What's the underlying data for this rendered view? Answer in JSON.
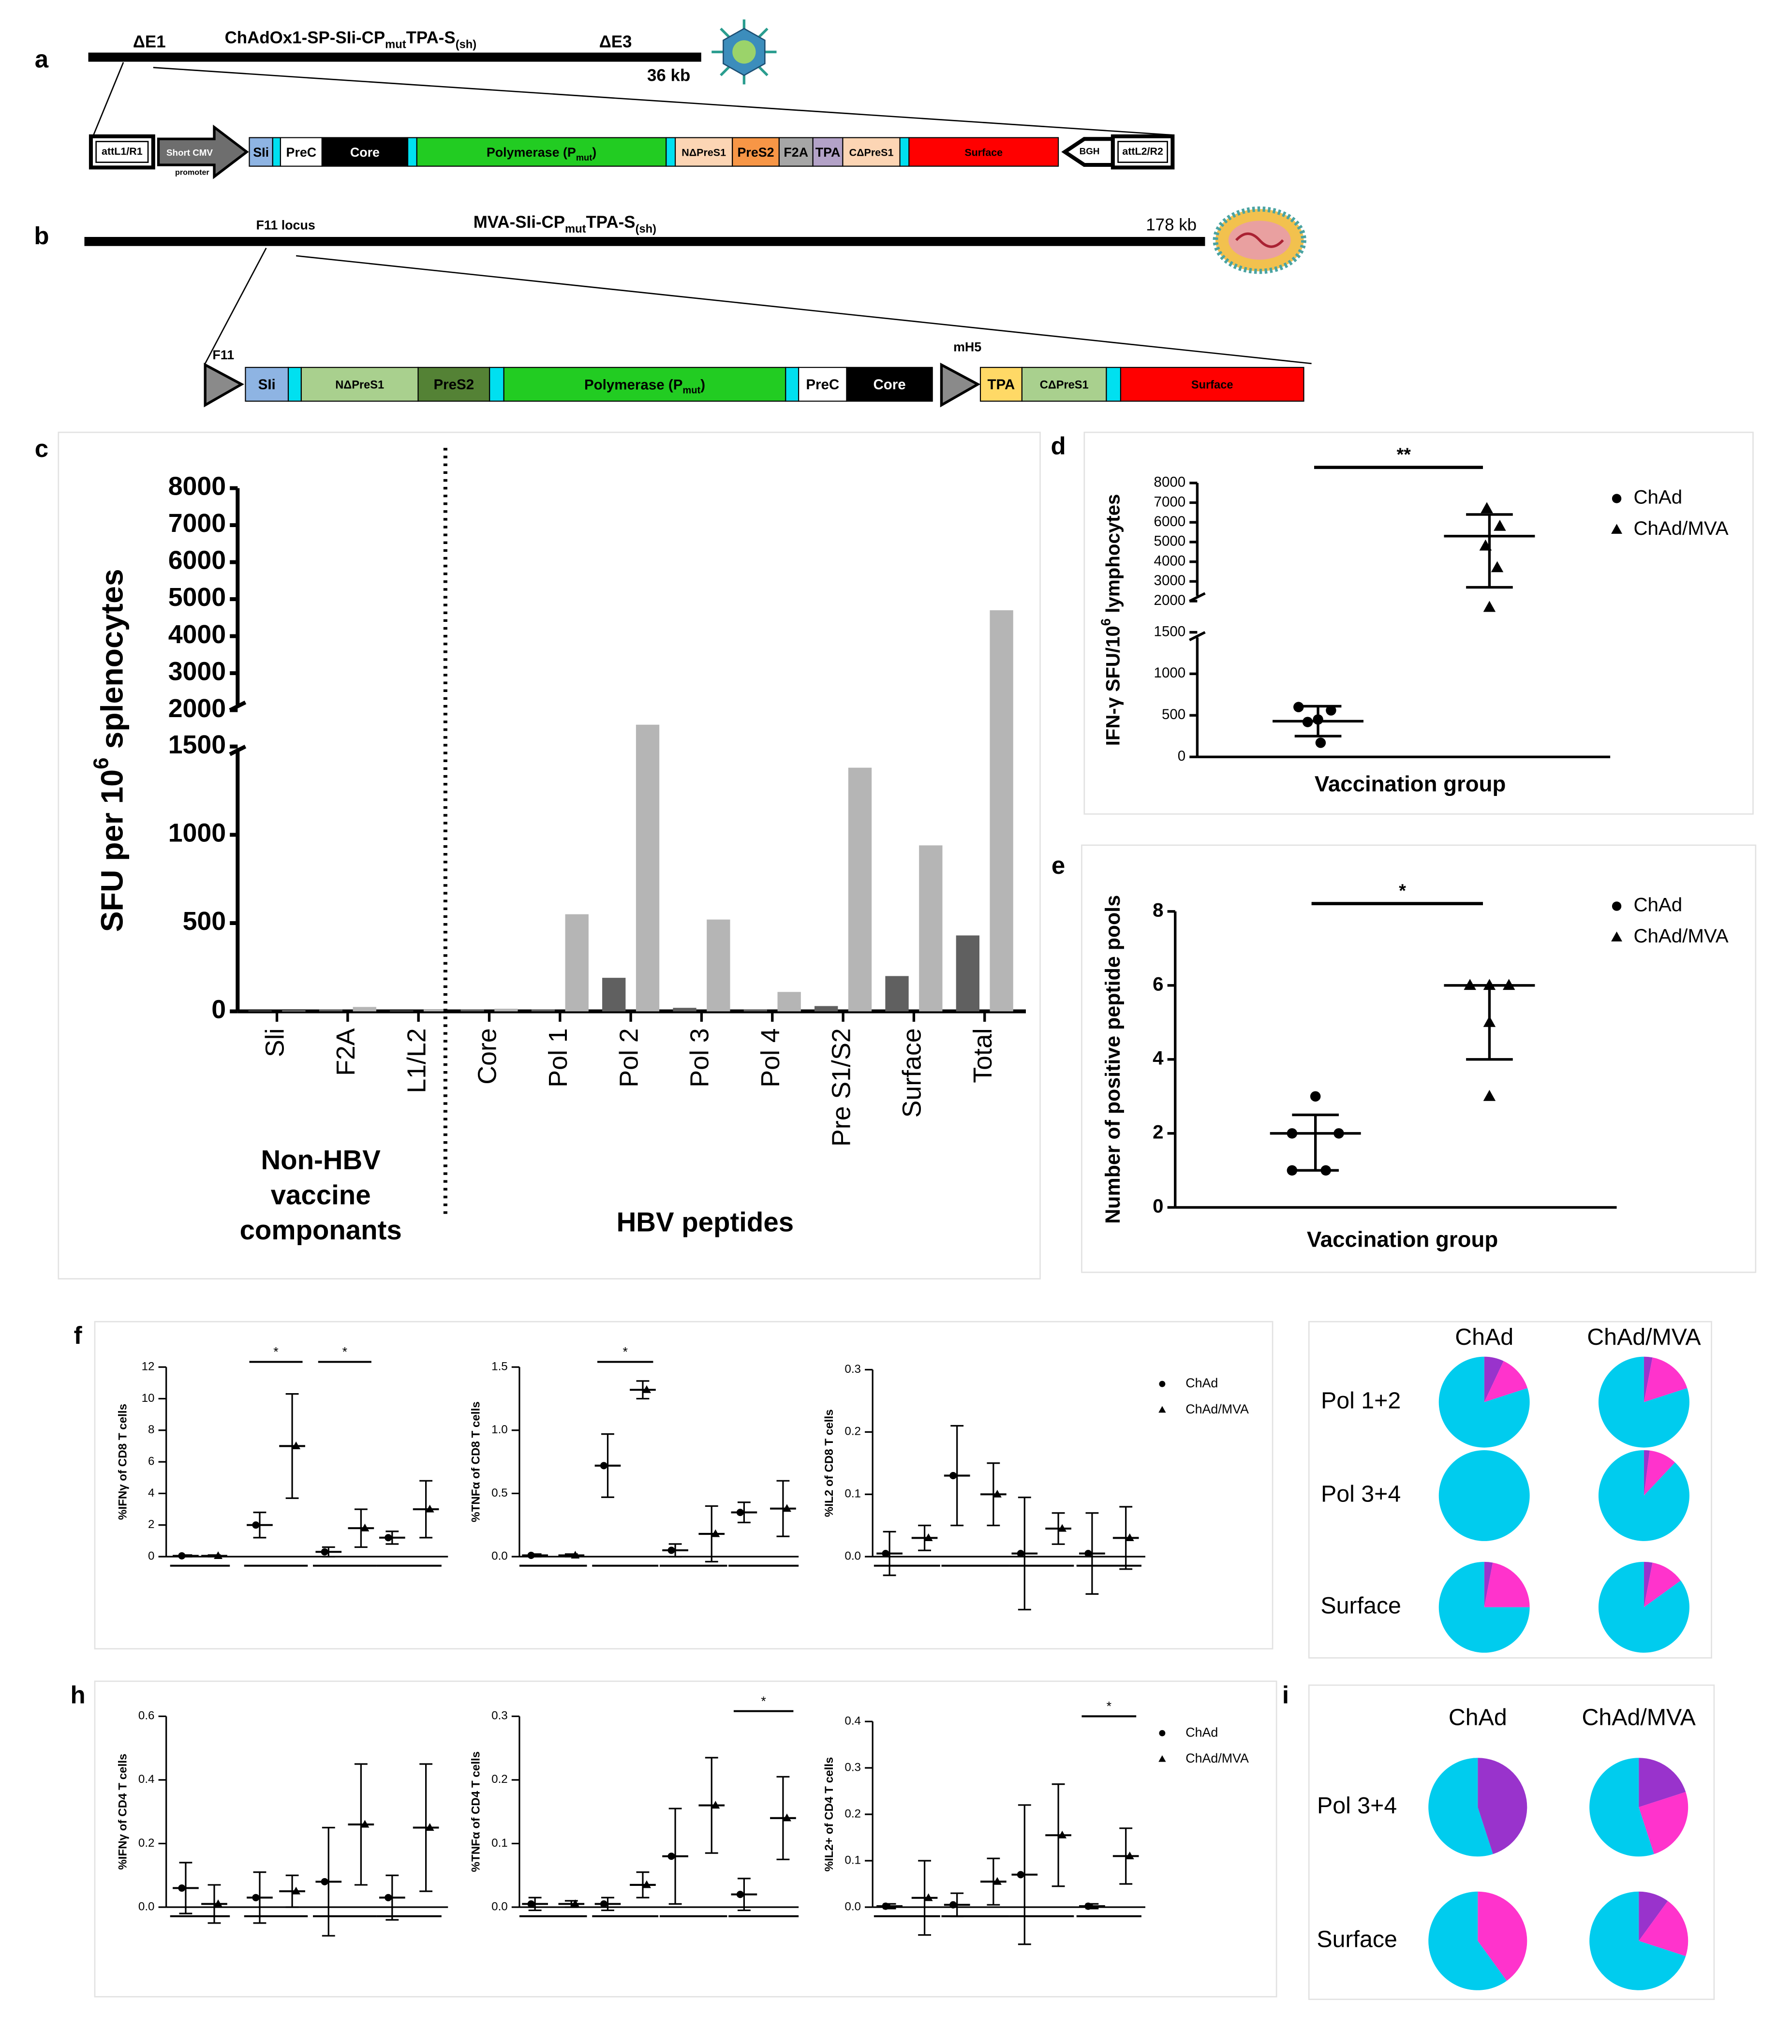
{
  "panel_labels": [
    "a",
    "b",
    "c",
    "d",
    "e",
    "f",
    "h",
    "i"
  ],
  "diagrams": [
    {
      "name_parts": [
        "ChAdOx1-SP-SIi-CP",
        "mut",
        "TPA-S",
        "(sh)"
      ],
      "left_mark": "ΔE1",
      "right_mark": "ΔE3",
      "size": "36 kb",
      "flank_left": "attL1/R1",
      "promoter": [
        "Short CMV",
        "promoter"
      ],
      "terminator": "BGH",
      "flank_right": "attL2/R2",
      "segments": [
        {
          "label": "SIi",
          "color": "#8eb4e3"
        },
        {
          "color": "#00e0f0"
        },
        {
          "label": "PreC",
          "color": "#ffffff"
        },
        {
          "label": "Core",
          "color": "#000000"
        },
        {
          "color": "#00e0f0"
        },
        {
          "label": [
            "Polymerase (P",
            "mut",
            ")"
          ],
          "color": "#22cc22"
        },
        {
          "color": "#00e0f0"
        },
        {
          "label": "NΔPreS1",
          "color": "#fcd5b4"
        },
        {
          "label": "PreS2",
          "color": "#f79646"
        },
        {
          "label": "F2A",
          "color": "#a6a6a6"
        },
        {
          "label": "TPA",
          "color": "#b3a2c7"
        },
        {
          "label": "CΔPreS1",
          "color": "#fcd5b4"
        },
        {
          "color": "#00e0f0"
        },
        {
          "label": "Surface",
          "color": "#ff0000"
        }
      ]
    },
    {
      "name_parts": [
        "MVA-SIi-CP",
        "mut",
        "TPA-S",
        "(sh)"
      ],
      "locus": "F11 locus",
      "size": "178 kb",
      "promoter1": "F11",
      "promoter2": "mH5",
      "segments1": [
        {
          "label": "SIi",
          "color": "#8eb4e3"
        },
        {
          "color": "#00e0f0"
        },
        {
          "label": "NΔPreS1",
          "color": "#a9d08e"
        },
        {
          "label": "PreS2",
          "color": "#548235"
        },
        {
          "color": "#00e0f0"
        },
        {
          "label": [
            "Polymerase (P",
            "mut",
            ")"
          ],
          "color": "#22cc22"
        },
        {
          "color": "#00e0f0"
        },
        {
          "label": "PreC",
          "color": "#ffffff"
        },
        {
          "label": "Core",
          "color": "#000000"
        }
      ],
      "segments2": [
        {
          "label": "TPA",
          "color": "#ffd966"
        },
        {
          "label": "CΔPreS1",
          "color": "#a9d08e"
        },
        {
          "color": "#00e0f0"
        },
        {
          "label": "Surface",
          "color": "#ff0000"
        }
      ]
    }
  ],
  "chart_data": [
    {
      "type": "bar",
      "ylabel_parts": [
        "SFU per 10",
        "6",
        " splenocytes"
      ],
      "categories": [
        "Sli",
        "F2A",
        "L1/L2",
        "Core",
        "Pol 1",
        "Pol 2",
        "Pol 3",
        "Pol 4",
        "Pre S1/S2",
        "Surface",
        "Total"
      ],
      "series": [
        {
          "color": "#606060",
          "values": [
            5,
            10,
            5,
            10,
            10,
            190,
            20,
            10,
            30,
            200,
            430
          ]
        },
        {
          "color": "#b5b5b5",
          "values": [
            5,
            25,
            10,
            15,
            550,
            1800,
            520,
            110,
            1380,
            940,
            4700
          ]
        }
      ],
      "ylim": [
        0,
        8000
      ],
      "ybreak": [
        1500,
        2000
      ],
      "yticks": [
        0,
        500,
        1000,
        1500,
        2000,
        3000,
        4000,
        5000,
        6000,
        7000,
        8000
      ],
      "group_labels": [
        [
          "Non-HBV",
          "vaccine",
          "componants"
        ],
        [
          "HBV peptides"
        ]
      ]
    },
    {
      "type": "scatter",
      "ylabel_parts": [
        "IFN-γ SFU/10",
        "6",
        " lymphocytes"
      ],
      "xlabel": "Vaccination group",
      "ylim": [
        0,
        8000
      ],
      "ybreak": [
        1500,
        2000
      ],
      "yticks": [
        0,
        500,
        1000,
        1500,
        2000,
        3000,
        4000,
        5000,
        6000,
        7000,
        8000
      ],
      "significance": "**",
      "series": [
        {
          "name": "ChAd",
          "marker": "circle",
          "values": [
            600,
            560,
            450,
            420,
            170
          ],
          "center": 430,
          "lower": 250,
          "upper": 610
        },
        {
          "name": "ChAd/MVA",
          "marker": "triangle",
          "values": [
            6700,
            5800,
            4800,
            3700,
            1900
          ],
          "center": 5300,
          "lower": 2700,
          "upper": 6400
        }
      ]
    },
    {
      "type": "scatter",
      "ylabel": "Number of positive peptide pools",
      "xlabel": "Vaccination group",
      "ylim": [
        0,
        8
      ],
      "yticks": [
        0,
        2,
        4,
        6,
        8
      ],
      "significance": "*",
      "series": [
        {
          "name": "ChAd",
          "marker": "circle",
          "values": [
            3,
            2,
            2,
            1,
            1
          ],
          "center": 2,
          "lower": 1,
          "upper": 2.5
        },
        {
          "name": "ChAd/MVA",
          "marker": "triangle",
          "values": [
            6,
            6,
            6,
            5,
            3
          ],
          "center": 6,
          "lower": 4,
          "upper": 6
        }
      ]
    },
    {
      "type": "dot",
      "ylabel": "%IFNγ of CD8 T cells",
      "ylim": [
        0,
        12
      ],
      "yticks": [
        0,
        2,
        4,
        6,
        8,
        10,
        12
      ],
      "significance_labels": [
        null,
        "*",
        "*",
        null
      ],
      "series": [
        {
          "marker": "circle",
          "values": [
            0.05,
            2.0,
            0.3,
            1.2
          ],
          "errors": [
            0.05,
            0.8,
            0.3,
            0.4
          ]
        },
        {
          "marker": "triangle",
          "values": [
            0.05,
            7.0,
            1.8,
            3.0
          ],
          "errors": [
            0.05,
            3.3,
            1.2,
            1.8
          ]
        }
      ]
    },
    {
      "type": "dot",
      "ylabel": "%TNFα of CD8 T cells",
      "ylim": [
        0,
        1.5
      ],
      "yticks": [
        {
          "value": 0,
          "label": "0.0"
        },
        0.5,
        {
          "value": 1,
          "label": "1.0"
        },
        1.5
      ],
      "significance_labels": [
        null,
        "*",
        null,
        null
      ],
      "series": [
        {
          "marker": "circle",
          "values": [
            0.01,
            0.72,
            0.05,
            0.35
          ],
          "errors": [
            0.01,
            0.25,
            0.05,
            0.08
          ]
        },
        {
          "marker": "triangle",
          "values": [
            0.01,
            1.32,
            0.18,
            0.38
          ],
          "errors": [
            0.01,
            0.07,
            0.22,
            0.22
          ]
        }
      ]
    },
    {
      "type": "dot",
      "ylabel": "%IL2 of CD8 T cells",
      "ylim": [
        0,
        0.3
      ],
      "yticks": [
        {
          "value": 0,
          "label": "0.0"
        },
        0.1,
        0.2,
        0.3
      ],
      "significance_labels": [
        null,
        null,
        null,
        null
      ],
      "series": [
        {
          "name": "ChAd",
          "marker": "circle",
          "values": [
            0.005,
            0.13,
            0.005,
            0.005
          ],
          "errors": [
            0.035,
            0.08,
            0.09,
            0.065
          ]
        },
        {
          "name": "ChAd/MVA",
          "marker": "triangle",
          "values": [
            0.03,
            0.1,
            0.045,
            0.03
          ],
          "errors": [
            0.02,
            0.05,
            0.025,
            0.05
          ]
        }
      ]
    },
    {
      "type": "pie",
      "columns": [
        "ChAd",
        "ChAd/MVA"
      ],
      "rows": [
        "Pol 1+2",
        "Pol 3+4",
        "Surface"
      ],
      "colors": [
        "#9933cc",
        "#ff33cc",
        "#00ccee"
      ],
      "values": [
        [
          [
            7,
            13,
            80
          ],
          [
            3,
            17,
            80
          ]
        ],
        [
          [
            0,
            0,
            100
          ],
          [
            2,
            10,
            88
          ]
        ],
        [
          [
            3,
            22,
            75
          ],
          [
            3,
            12,
            85
          ]
        ]
      ]
    },
    {
      "type": "dot",
      "ylabel": "%IFNγ of CD4 T cells",
      "ylim": [
        0,
        0.6
      ],
      "yticks": [
        {
          "value": 0,
          "label": "0.0"
        },
        0.2,
        0.4,
        0.6
      ],
      "significance_labels": [
        null,
        null,
        null,
        null
      ],
      "series": [
        {
          "marker": "circle",
          "values": [
            0.06,
            0.03,
            0.08,
            0.03
          ],
          "errors": [
            0.08,
            0.08,
            0.17,
            0.07
          ]
        },
        {
          "marker": "triangle",
          "values": [
            0.01,
            0.05,
            0.26,
            0.25
          ],
          "errors": [
            0.06,
            0.05,
            0.19,
            0.2
          ]
        }
      ]
    },
    {
      "type": "dot",
      "ylabel": "%TNFα of CD4 T cells",
      "ylim": [
        0,
        0.3
      ],
      "yticks": [
        {
          "value": 0,
          "label": "0.0"
        },
        0.1,
        0.2,
        0.3
      ],
      "significance_labels": [
        null,
        null,
        null,
        "*"
      ],
      "series": [
        {
          "marker": "circle",
          "values": [
            0.005,
            0.005,
            0.08,
            0.02
          ],
          "errors": [
            0.01,
            0.01,
            0.075,
            0.025
          ]
        },
        {
          "marker": "triangle",
          "values": [
            0.005,
            0.035,
            0.16,
            0.14
          ],
          "errors": [
            0.005,
            0.02,
            0.075,
            0.065
          ]
        }
      ]
    },
    {
      "type": "dot",
      "ylabel": "%IL2+ of CD4 T cells",
      "ylim": [
        0,
        0.4
      ],
      "yticks": [
        {
          "value": 0,
          "label": "0.0"
        },
        0.1,
        0.2,
        0.3,
        0.4
      ],
      "significance_labels": [
        null,
        null,
        null,
        "*"
      ],
      "series": [
        {
          "name": "ChAd",
          "marker": "circle",
          "values": [
            0.002,
            0.005,
            0.07,
            0.002
          ],
          "errors": [
            0.005,
            0.025,
            0.15,
            0.005
          ]
        },
        {
          "name": "ChAd/MVA",
          "marker": "triangle",
          "values": [
            0.02,
            0.055,
            0.155,
            0.11
          ],
          "errors": [
            0.08,
            0.05,
            0.11,
            0.06
          ]
        }
      ]
    },
    {
      "type": "pie",
      "columns": [
        "ChAd",
        "ChAd/MVA"
      ],
      "rows": [
        "Pol 3+4",
        "Surface"
      ],
      "colors": [
        "#9933cc",
        "#ff33cc",
        "#00ccee"
      ],
      "values": [
        [
          [
            45,
            0,
            55
          ],
          [
            20,
            25,
            55
          ]
        ],
        [
          [
            0,
            40,
            60
          ],
          [
            10,
            20,
            70
          ]
        ]
      ]
    }
  ]
}
